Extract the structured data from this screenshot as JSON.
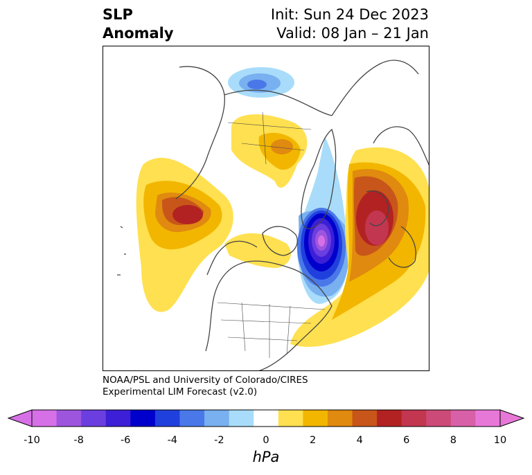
{
  "title": {
    "left_line1": "SLP",
    "left_line2": "Anomaly",
    "init": "Init: Sun 24 Dec 2023",
    "valid": "Valid: 08 Jan – 21 Jan"
  },
  "credit": {
    "line1": "NOAA/PSL and University of Colorado/CIRES",
    "line2": "Experimental LIM Forecast (v2.0)"
  },
  "colorbar": {
    "unit": "hPa",
    "tick_labels": [
      "-10",
      "-8",
      "-6",
      "-4",
      "-2",
      "0",
      "2",
      "4",
      "6",
      "8",
      "10"
    ],
    "colors": [
      "#d670e6",
      "#9e55dd",
      "#6b3ee0",
      "#3c1fd6",
      "#0000cc",
      "#2040dd",
      "#4a78e8",
      "#78b0f0",
      "#a8dcfa",
      "#ffffff",
      "#ffe050",
      "#f2b600",
      "#e08a10",
      "#c8561a",
      "#b32222",
      "#c23650",
      "#cc4a78",
      "#d860a8",
      "#e878d8"
    ],
    "under_color": "#d670e6",
    "over_color": "#e878d8"
  },
  "colors": {
    "positive_strong": "#b32222",
    "negative_strong": "#0000cc",
    "coastline": "#444444"
  }
}
